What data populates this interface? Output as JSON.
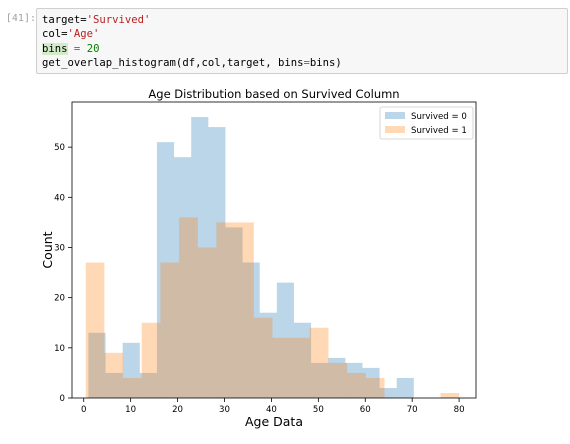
{
  "cell": {
    "prompt": "[41]:",
    "code_lines": [
      [
        {
          "t": "target=",
          "c": ""
        },
        {
          "t": "'Survived'",
          "c": "str"
        }
      ],
      [
        {
          "t": "col=",
          "c": ""
        },
        {
          "t": "'Age'",
          "c": "str"
        }
      ],
      [
        {
          "t": "bins",
          "c": "hl"
        },
        {
          "t": " ",
          "c": ""
        },
        {
          "t": "=",
          "c": "op"
        },
        {
          "t": " ",
          "c": ""
        },
        {
          "t": "20",
          "c": "num"
        }
      ],
      [
        {
          "t": "get_overlap_histogram(df,col,target, bins",
          "c": ""
        },
        {
          "t": "=",
          "c": "op"
        },
        {
          "t": "bins)",
          "c": ""
        }
      ]
    ]
  },
  "colors": {
    "survived_0": "#1f77b4",
    "survived_1": "#ff7f0e",
    "cell_bg": "#f7f7f7",
    "prompt": "#a0a0a0"
  },
  "chart_data": {
    "type": "bar",
    "title": "Age Distribution based on Survived Column",
    "xlabel": "Age Data",
    "ylabel": "Count",
    "xlim": [
      -2.5,
      83.6
    ],
    "ylim": [
      0,
      59
    ],
    "xticks": [
      0,
      10,
      20,
      30,
      40,
      50,
      60,
      70,
      80
    ],
    "yticks": [
      0,
      10,
      20,
      30,
      40,
      50
    ],
    "legend_position": "top-right",
    "series": [
      {
        "name": "Survived = 0",
        "alpha": 0.3,
        "bin_edges": [
          1.0,
          4.65,
          8.3,
          11.95,
          15.6,
          19.25,
          22.9,
          26.55,
          30.2,
          33.85,
          37.5,
          41.15,
          44.8,
          48.45,
          52.1,
          55.75,
          59.4,
          63.05,
          66.7,
          70.35,
          74.0
        ],
        "counts": [
          13,
          5,
          11,
          5,
          51,
          48,
          56,
          54,
          34,
          27,
          17,
          23,
          15,
          7,
          8,
          7,
          6,
          2,
          4,
          0
        ]
      },
      {
        "name": "Survived = 1",
        "alpha": 0.3,
        "bin_edges": [
          0.42,
          4.4,
          8.38,
          12.36,
          16.34,
          20.32,
          24.3,
          28.28,
          32.26,
          36.24,
          40.22,
          44.2,
          48.18,
          52.16,
          56.14,
          60.12,
          64.1,
          68.08,
          72.06,
          76.04,
          80.0
        ],
        "counts": [
          27,
          9,
          4,
          15,
          27,
          36,
          30,
          35,
          35,
          16,
          12,
          12,
          14,
          7,
          5,
          4,
          0,
          0,
          0,
          1
        ]
      }
    ]
  }
}
